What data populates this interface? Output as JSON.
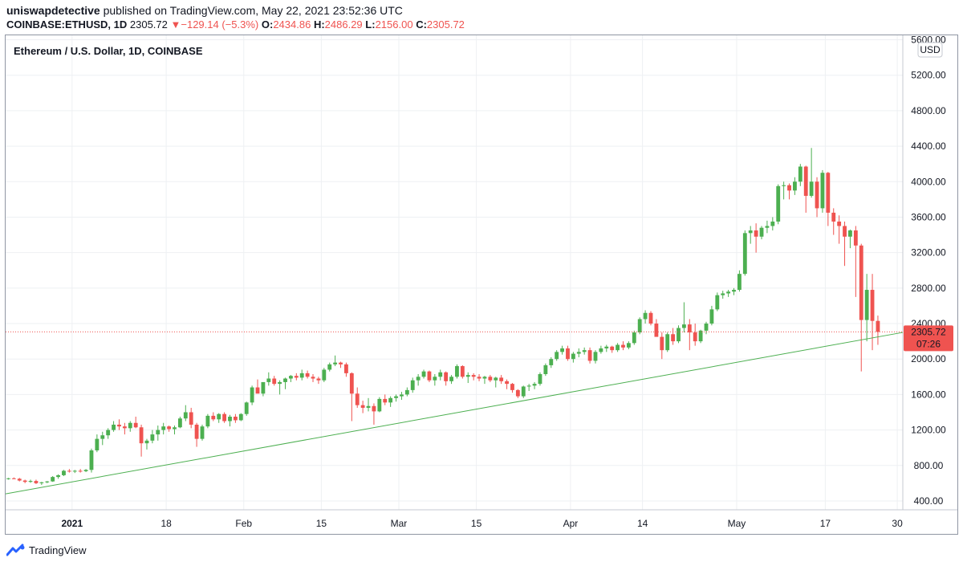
{
  "header": {
    "author": "uniswapdetective",
    "published": "published on TradingView.com, May 22, 2021 23:52:36 UTC",
    "symbol": "COINBASE:ETHUSD, 1D",
    "last": "2305.72",
    "change_arrow": "▼",
    "change": "−129.14 (−5.3%)",
    "o_label": "O:",
    "o_value": "2434.86",
    "h_label": "H:",
    "h_value": "2486.29",
    "l_label": "L:",
    "l_value": "2156.00",
    "c_label": "C:",
    "c_value": "2305.72"
  },
  "footer": {
    "brand": "TradingView",
    "logo_icon": "tradingview-logo-icon"
  },
  "colors": {
    "up": "#4caf50",
    "down": "#ef5350",
    "trendline": "#4caf50",
    "grid": "#eef0f3",
    "label_bg": "#ef5350"
  },
  "chart_data": {
    "type": "candlestick",
    "title": "Ethereum / U.S. Dollar, 1D, COINBASE",
    "currency": "USD",
    "y_ticks": [
      "400.00",
      "800.00",
      "1200.00",
      "1600.00",
      "2000.00",
      "2400.00",
      "2800.00",
      "3200.00",
      "3600.00",
      "4000.00",
      "4400.00",
      "4800.00",
      "5200.00",
      "5600.00"
    ],
    "y_tick_values": [
      400,
      800,
      1200,
      1600,
      2000,
      2400,
      2800,
      3200,
      3600,
      4000,
      4400,
      4800,
      5200,
      5600
    ],
    "x_ticks": [
      {
        "label": "2021",
        "date": "2021-01-01",
        "bold": true
      },
      {
        "label": "18",
        "date": "2021-01-18"
      },
      {
        "label": "Feb",
        "date": "2021-02-01"
      },
      {
        "label": "15",
        "date": "2021-02-15"
      },
      {
        "label": "Mar",
        "date": "2021-03-01"
      },
      {
        "label": "15",
        "date": "2021-03-15"
      },
      {
        "label": "Apr",
        "date": "2021-04-01"
      },
      {
        "label": "14",
        "date": "2021-04-14"
      },
      {
        "label": "May",
        "date": "2021-05-01"
      },
      {
        "label": "17",
        "date": "2021-05-17"
      },
      {
        "label": "30",
        "date": "2021-05-30"
      }
    ],
    "x_range": [
      "2020-12-20",
      "2021-05-31"
    ],
    "y_range": [
      300,
      5650
    ],
    "last_price": {
      "value": 2305.72,
      "label": "2305.72",
      "countdown": "07:26"
    },
    "trendline": {
      "from": {
        "date": "2020-12-20",
        "price": 480
      },
      "to": {
        "date": "2021-05-31",
        "price": 2300
      }
    },
    "start_date": "2020-12-20",
    "candles": [
      [
        650,
        660,
        640,
        655
      ],
      [
        655,
        665,
        645,
        650
      ],
      [
        650,
        660,
        620,
        630
      ],
      [
        630,
        640,
        600,
        615
      ],
      [
        615,
        640,
        605,
        625
      ],
      [
        625,
        640,
        590,
        600
      ],
      [
        600,
        615,
        580,
        610
      ],
      [
        610,
        625,
        600,
        620
      ],
      [
        620,
        680,
        615,
        670
      ],
      [
        670,
        700,
        650,
        690
      ],
      [
        690,
        750,
        680,
        740
      ],
      [
        740,
        760,
        720,
        735
      ],
      [
        735,
        750,
        715,
        740
      ],
      [
        740,
        760,
        720,
        735
      ],
      [
        735,
        760,
        725,
        750
      ],
      [
        750,
        990,
        720,
        970
      ],
      [
        970,
        1150,
        950,
        1100
      ],
      [
        1100,
        1180,
        1030,
        1140
      ],
      [
        1140,
        1220,
        1100,
        1200
      ],
      [
        1200,
        1300,
        1180,
        1260
      ],
      [
        1260,
        1320,
        1200,
        1240
      ],
      [
        1240,
        1280,
        1150,
        1220
      ],
      [
        1220,
        1300,
        1180,
        1280
      ],
      [
        1280,
        1350,
        1220,
        1230
      ],
      [
        1230,
        1260,
        900,
        1050
      ],
      [
        1050,
        1100,
        980,
        1080
      ],
      [
        1080,
        1200,
        1050,
        1150
      ],
      [
        1150,
        1250,
        1080,
        1200
      ],
      [
        1200,
        1280,
        1150,
        1240
      ],
      [
        1240,
        1250,
        1180,
        1210
      ],
      [
        1210,
        1250,
        1150,
        1230
      ],
      [
        1230,
        1350,
        1220,
        1330
      ],
      [
        1330,
        1480,
        1300,
        1400
      ],
      [
        1400,
        1450,
        1220,
        1260
      ],
      [
        1260,
        1280,
        1010,
        1100
      ],
      [
        1100,
        1260,
        1080,
        1240
      ],
      [
        1240,
        1380,
        1220,
        1360
      ],
      [
        1360,
        1400,
        1300,
        1320
      ],
      [
        1320,
        1390,
        1280,
        1380
      ],
      [
        1380,
        1400,
        1280,
        1300
      ],
      [
        1300,
        1370,
        1240,
        1350
      ],
      [
        1350,
        1380,
        1280,
        1310
      ],
      [
        1310,
        1390,
        1300,
        1380
      ],
      [
        1380,
        1520,
        1360,
        1510
      ],
      [
        1510,
        1700,
        1480,
        1680
      ],
      [
        1680,
        1770,
        1650,
        1610
      ],
      [
        1610,
        1690,
        1580,
        1740
      ],
      [
        1740,
        1850,
        1700,
        1780
      ],
      [
        1780,
        1810,
        1700,
        1720
      ],
      [
        1720,
        1760,
        1600,
        1740
      ],
      [
        1740,
        1790,
        1660,
        1780
      ],
      [
        1780,
        1820,
        1740,
        1810
      ],
      [
        1810,
        1840,
        1760,
        1790
      ],
      [
        1790,
        1880,
        1760,
        1840
      ],
      [
        1840,
        1870,
        1780,
        1800
      ],
      [
        1800,
        1830,
        1740,
        1780
      ],
      [
        1780,
        1800,
        1720,
        1760
      ],
      [
        1760,
        1900,
        1740,
        1880
      ],
      [
        1880,
        1960,
        1860,
        1940
      ],
      [
        1940,
        2040,
        1920,
        1960
      ],
      [
        1960,
        1970,
        1900,
        1940
      ],
      [
        1940,
        1960,
        1800,
        1840
      ],
      [
        1840,
        1850,
        1300,
        1610
      ],
      [
        1610,
        1680,
        1450,
        1480
      ],
      [
        1480,
        1530,
        1390,
        1450
      ],
      [
        1450,
        1560,
        1410,
        1470
      ],
      [
        1470,
        1500,
        1260,
        1410
      ],
      [
        1410,
        1570,
        1400,
        1550
      ],
      [
        1550,
        1600,
        1480,
        1510
      ],
      [
        1510,
        1580,
        1460,
        1560
      ],
      [
        1560,
        1600,
        1520,
        1580
      ],
      [
        1580,
        1630,
        1540,
        1600
      ],
      [
        1600,
        1680,
        1580,
        1650
      ],
      [
        1650,
        1790,
        1620,
        1760
      ],
      [
        1760,
        1830,
        1700,
        1800
      ],
      [
        1800,
        1880,
        1780,
        1860
      ],
      [
        1860,
        1870,
        1740,
        1760
      ],
      [
        1760,
        1830,
        1700,
        1800
      ],
      [
        1800,
        1880,
        1760,
        1850
      ],
      [
        1850,
        1860,
        1700,
        1750
      ],
      [
        1750,
        1820,
        1720,
        1800
      ],
      [
        1800,
        1940,
        1780,
        1920
      ],
      [
        1920,
        1930,
        1780,
        1800
      ],
      [
        1800,
        1850,
        1730,
        1820
      ],
      [
        1820,
        1840,
        1760,
        1800
      ],
      [
        1800,
        1830,
        1750,
        1780
      ],
      [
        1780,
        1810,
        1720,
        1800
      ],
      [
        1800,
        1820,
        1740,
        1760
      ],
      [
        1760,
        1800,
        1680,
        1790
      ],
      [
        1790,
        1820,
        1720,
        1750
      ],
      [
        1750,
        1770,
        1660,
        1720
      ],
      [
        1720,
        1730,
        1620,
        1650
      ],
      [
        1650,
        1660,
        1560,
        1580
      ],
      [
        1580,
        1700,
        1560,
        1690
      ],
      [
        1690,
        1720,
        1640,
        1700
      ],
      [
        1700,
        1740,
        1660,
        1720
      ],
      [
        1720,
        1850,
        1700,
        1830
      ],
      [
        1830,
        1950,
        1810,
        1930
      ],
      [
        1930,
        2020,
        1900,
        2000
      ],
      [
        2000,
        2100,
        1980,
        2080
      ],
      [
        2080,
        2150,
        2050,
        2120
      ],
      [
        2120,
        2150,
        1980,
        2000
      ],
      [
        2000,
        2080,
        1960,
        2060
      ],
      [
        2060,
        2120,
        2020,
        2080
      ],
      [
        2080,
        2130,
        2050,
        2100
      ],
      [
        2100,
        2130,
        1950,
        1980
      ],
      [
        1980,
        2100,
        1950,
        2080
      ],
      [
        2080,
        2150,
        2060,
        2120
      ],
      [
        2120,
        2160,
        2080,
        2140
      ],
      [
        2140,
        2150,
        2070,
        2100
      ],
      [
        2100,
        2180,
        2080,
        2160
      ],
      [
        2160,
        2200,
        2100,
        2130
      ],
      [
        2130,
        2200,
        2110,
        2180
      ],
      [
        2180,
        2320,
        2160,
        2300
      ],
      [
        2300,
        2470,
        2280,
        2450
      ],
      [
        2450,
        2550,
        2400,
        2520
      ],
      [
        2520,
        2540,
        2380,
        2400
      ],
      [
        2400,
        2450,
        2300,
        2250
      ],
      [
        2250,
        2300,
        2000,
        2100
      ],
      [
        2100,
        2300,
        2080,
        2280
      ],
      [
        2280,
        2350,
        2160,
        2200
      ],
      [
        2200,
        2380,
        2180,
        2350
      ],
      [
        2350,
        2640,
        2300,
        2390
      ],
      [
        2390,
        2450,
        2100,
        2300
      ],
      [
        2300,
        2400,
        2150,
        2200
      ],
      [
        2200,
        2330,
        2180,
        2320
      ],
      [
        2320,
        2420,
        2280,
        2400
      ],
      [
        2400,
        2600,
        2380,
        2560
      ],
      [
        2560,
        2750,
        2540,
        2720
      ],
      [
        2720,
        2770,
        2680,
        2740
      ],
      [
        2740,
        2780,
        2700,
        2760
      ],
      [
        2760,
        2800,
        2720,
        2780
      ],
      [
        2780,
        3000,
        2760,
        2960
      ],
      [
        2960,
        3450,
        2940,
        3420
      ],
      [
        3420,
        3500,
        3300,
        3450
      ],
      [
        3450,
        3530,
        3200,
        3380
      ],
      [
        3380,
        3500,
        3350,
        3480
      ],
      [
        3480,
        3560,
        3420,
        3500
      ],
      [
        3500,
        3600,
        3450,
        3550
      ],
      [
        3550,
        3970,
        3520,
        3950
      ],
      [
        3950,
        4000,
        3800,
        3960
      ],
      [
        3960,
        3980,
        3800,
        3900
      ],
      [
        3900,
        4050,
        3850,
        4000
      ],
      [
        4000,
        4200,
        3950,
        4170
      ],
      [
        4170,
        4180,
        3650,
        3840
      ],
      [
        3840,
        4380,
        3820,
        4000
      ],
      [
        4000,
        4050,
        3600,
        3700
      ],
      [
        3700,
        4130,
        3650,
        4100
      ],
      [
        4100,
        4110,
        3500,
        3650
      ],
      [
        3650,
        3700,
        3400,
        3550
      ],
      [
        3550,
        3620,
        3300,
        3500
      ],
      [
        3500,
        3550,
        3050,
        3380
      ],
      [
        3380,
        3460,
        3250,
        3450
      ],
      [
        3450,
        3500,
        2700,
        3280
      ],
      [
        3280,
        3300,
        1860,
        2440
      ],
      [
        2440,
        2960,
        2200,
        2780
      ],
      [
        2780,
        2960,
        2100,
        2430
      ],
      [
        2430,
        2490,
        2160,
        2306
      ]
    ]
  }
}
